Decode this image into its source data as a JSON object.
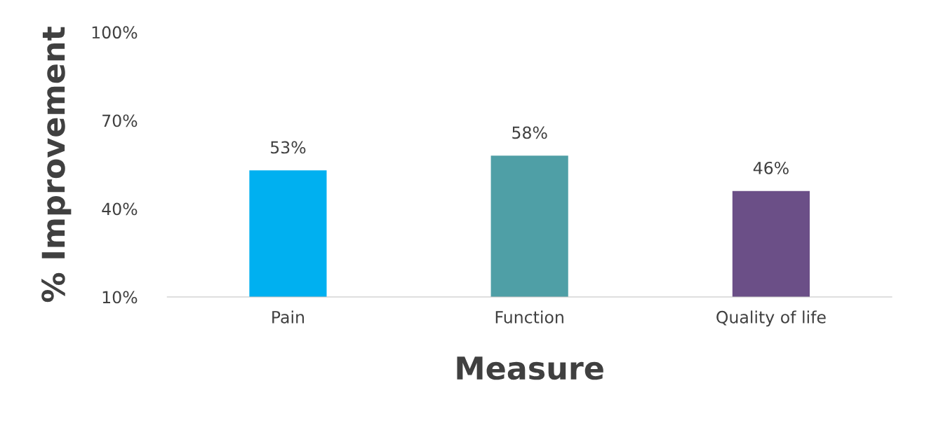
{
  "chart_data": {
    "type": "bar",
    "xlabel": "Measure",
    "ylabel": "% Improvement",
    "categories": [
      "Pain",
      "Function",
      "Quality of life"
    ],
    "values": [
      53,
      58,
      46
    ],
    "colors": [
      "#00b0f0",
      "#4f9fa6",
      "#6b4f87"
    ],
    "value_labels": [
      "53%",
      "58%",
      "46%"
    ],
    "ylim": [
      10,
      100
    ],
    "yticks": [
      {
        "value": 10,
        "label": "10%"
      },
      {
        "value": 40,
        "label": "40%"
      },
      {
        "value": 70,
        "label": "70%"
      },
      {
        "value": 100,
        "label": "100%"
      }
    ],
    "grid": false,
    "legend": false
  }
}
